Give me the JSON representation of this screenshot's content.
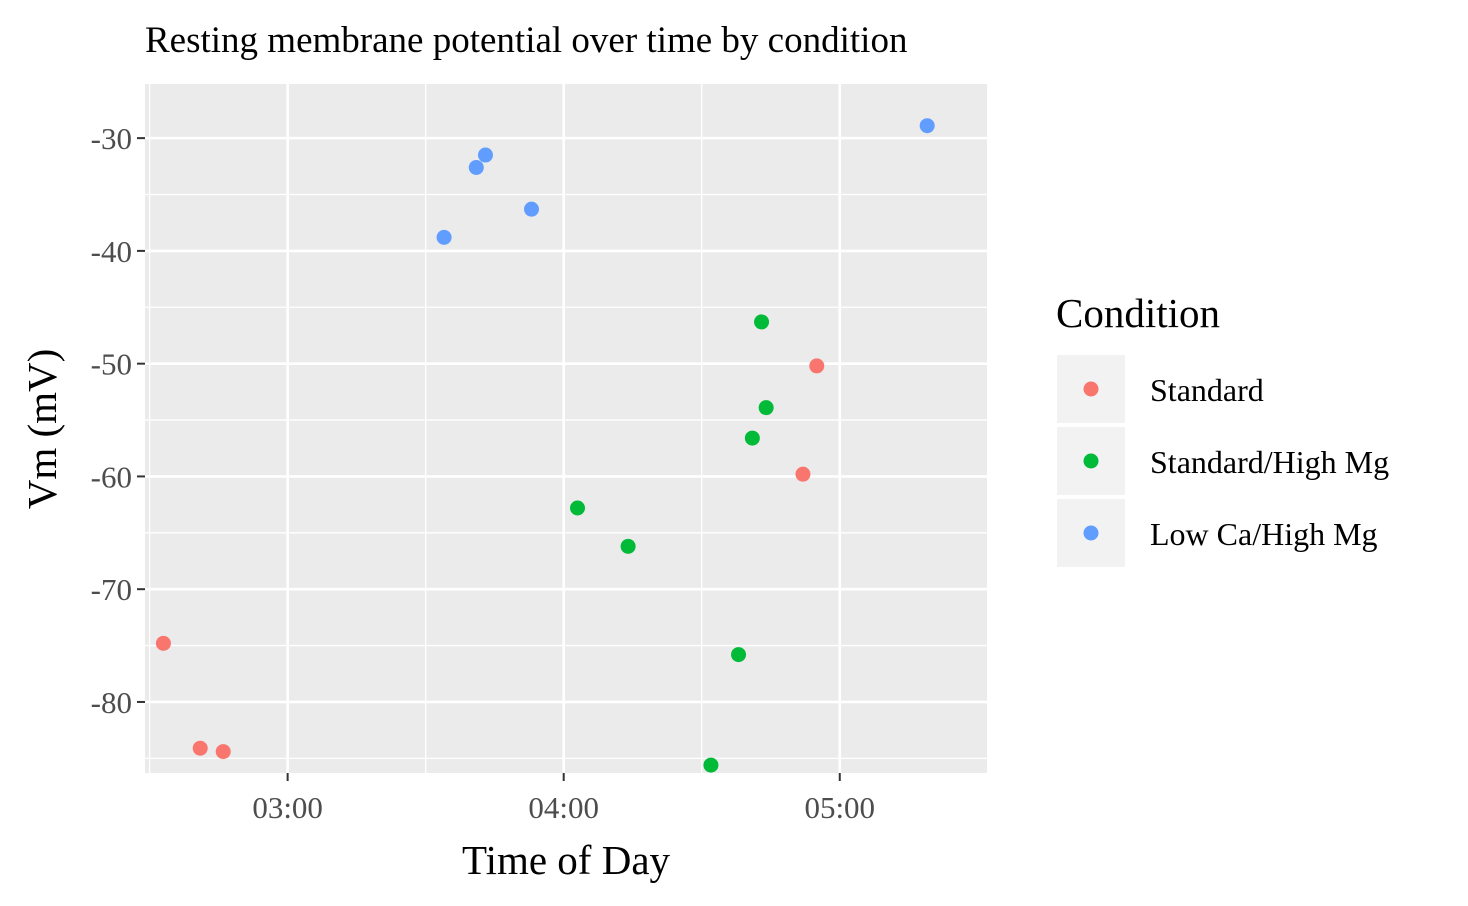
{
  "chart_data": {
    "type": "scatter",
    "title": "Resting membrane potential over time by condition",
    "xlabel": "Time of Day",
    "ylabel": "Vm (mV)",
    "x_ticks": [
      "03:00",
      "04:00",
      "05:00"
    ],
    "y_ticks": [
      -30,
      -40,
      -50,
      -60,
      -70,
      -80
    ],
    "xlim": [
      "02:29",
      "05:32"
    ],
    "ylim": [
      -86.3,
      -25.2
    ],
    "grid": true,
    "legend": {
      "title": "Condition",
      "position": "right"
    },
    "series": [
      {
        "name": "Standard",
        "color": "#F8766D",
        "points": [
          {
            "x": "02:33",
            "y": -74.8
          },
          {
            "x": "02:41",
            "y": -84.1
          },
          {
            "x": "02:46",
            "y": -84.4
          },
          {
            "x": "04:52",
            "y": -59.8
          },
          {
            "x": "04:55",
            "y": -50.2
          }
        ]
      },
      {
        "name": "Standard/High Mg",
        "color": "#00BA38",
        "points": [
          {
            "x": "04:03",
            "y": -62.8
          },
          {
            "x": "04:14",
            "y": -66.2
          },
          {
            "x": "04:32",
            "y": -85.6
          },
          {
            "x": "04:38",
            "y": -75.8
          },
          {
            "x": "04:41",
            "y": -56.6
          },
          {
            "x": "04:43",
            "y": -46.3
          },
          {
            "x": "04:44",
            "y": -53.9
          }
        ]
      },
      {
        "name": "Low Ca/High Mg",
        "color": "#619CFF",
        "points": [
          {
            "x": "03:34",
            "y": -38.8
          },
          {
            "x": "03:41",
            "y": -32.6
          },
          {
            "x": "03:43",
            "y": -31.5
          },
          {
            "x": "03:53",
            "y": -36.3
          },
          {
            "x": "05:19",
            "y": -28.9
          }
        ]
      }
    ]
  }
}
